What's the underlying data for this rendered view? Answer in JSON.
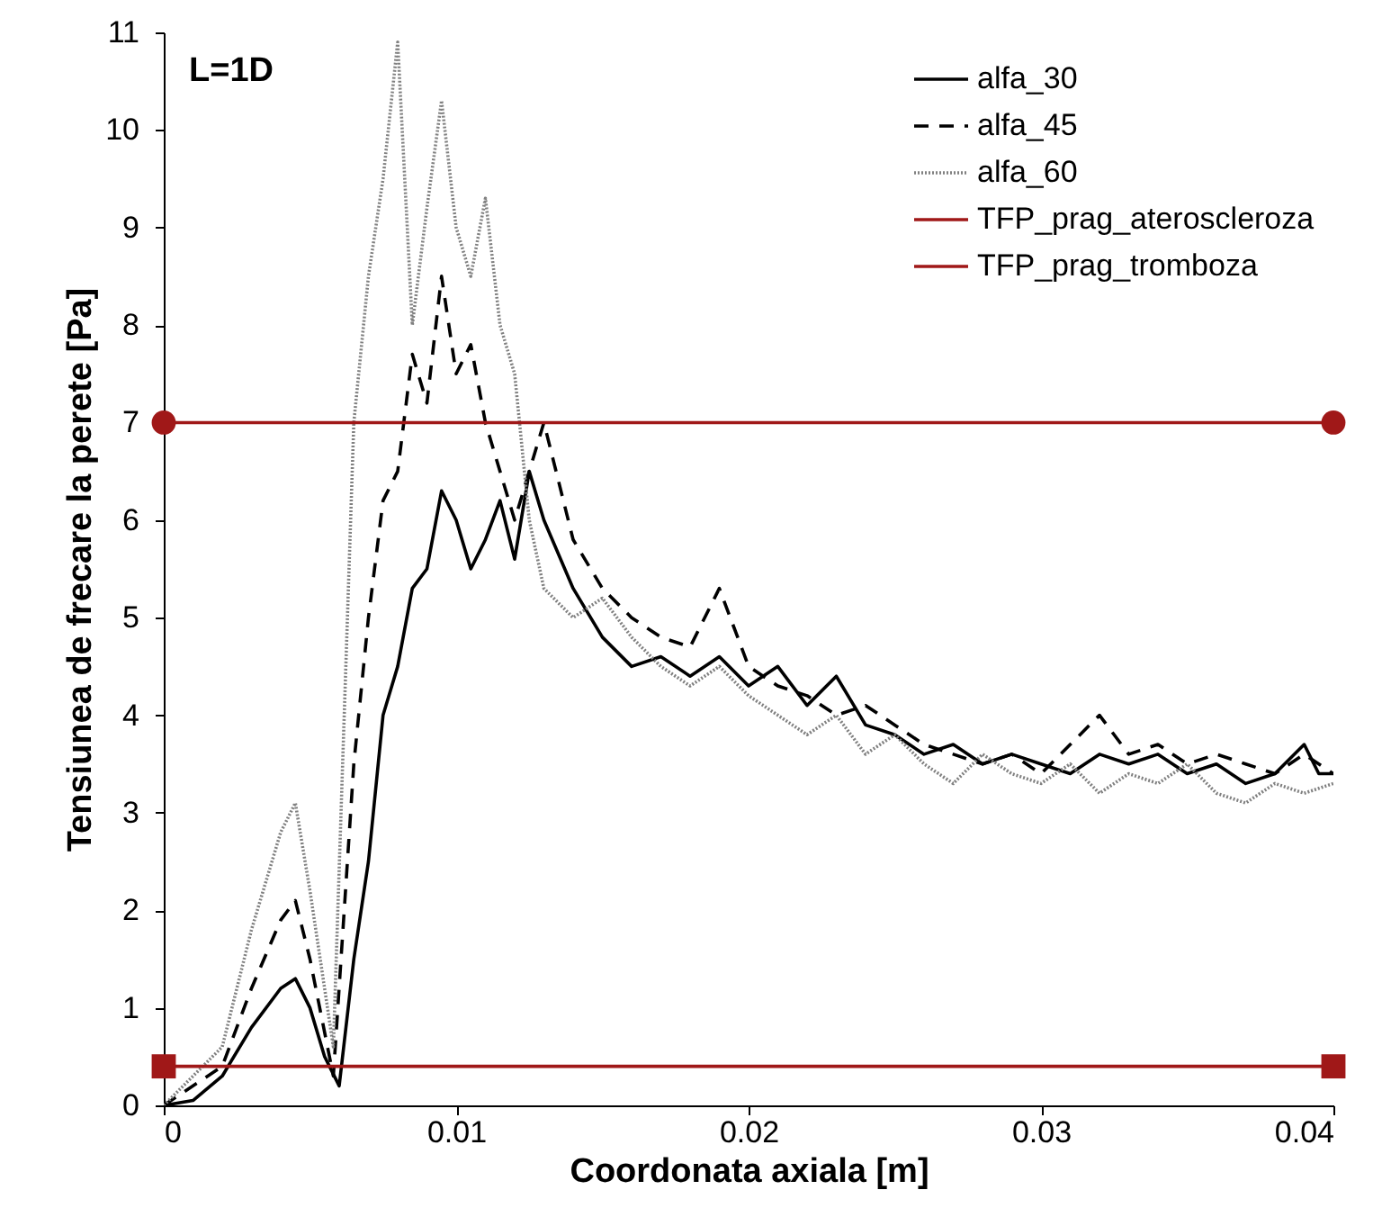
{
  "chart_data": {
    "type": "line",
    "xlabel": "Coordonata axiala [m]",
    "ylabel": "Tensiunea de frecare la perete [Pa]",
    "annotations": [
      "L=1D"
    ],
    "xlim": [
      0,
      0.04
    ],
    "xticks": [
      0,
      0.01,
      0.02,
      0.03,
      0.04
    ],
    "ylim": [
      0,
      11
    ],
    "yticks": [
      0,
      1,
      2,
      3,
      4,
      5,
      6,
      7,
      8,
      9,
      10,
      11
    ],
    "grid": false,
    "legend": "top right",
    "series": [
      {
        "name": "alfa_30",
        "color": "#000000",
        "line_style": "solid",
        "x": [
          0,
          0.001,
          0.002,
          0.003,
          0.004,
          0.0045,
          0.005,
          0.0055,
          0.006,
          0.0065,
          0.007,
          0.0075,
          0.008,
          0.0085,
          0.009,
          0.0095,
          0.01,
          0.0105,
          0.011,
          0.0115,
          0.012,
          0.0125,
          0.013,
          0.014,
          0.015,
          0.016,
          0.017,
          0.018,
          0.019,
          0.02,
          0.021,
          0.022,
          0.023,
          0.024,
          0.025,
          0.026,
          0.027,
          0.028,
          0.029,
          0.03,
          0.031,
          0.032,
          0.033,
          0.034,
          0.035,
          0.036,
          0.037,
          0.038,
          0.039,
          0.0395,
          0.04
        ],
        "values": [
          0,
          0.05,
          0.3,
          0.8,
          1.2,
          1.3,
          1.0,
          0.5,
          0.2,
          1.5,
          2.5,
          4.0,
          4.5,
          5.3,
          5.5,
          6.3,
          6.0,
          5.5,
          5.8,
          6.2,
          5.6,
          6.5,
          6.0,
          5.3,
          4.8,
          4.5,
          4.6,
          4.4,
          4.6,
          4.3,
          4.5,
          4.1,
          4.4,
          3.9,
          3.8,
          3.6,
          3.7,
          3.5,
          3.6,
          3.5,
          3.4,
          3.6,
          3.5,
          3.6,
          3.4,
          3.5,
          3.3,
          3.4,
          3.7,
          3.4,
          3.4
        ]
      },
      {
        "name": "alfa_45",
        "color": "#000000",
        "line_style": "dashed",
        "x": [
          0,
          0.002,
          0.003,
          0.004,
          0.0045,
          0.005,
          0.0058,
          0.0065,
          0.007,
          0.0075,
          0.008,
          0.0085,
          0.009,
          0.0095,
          0.01,
          0.0105,
          0.011,
          0.0115,
          0.012,
          0.013,
          0.014,
          0.015,
          0.016,
          0.017,
          0.018,
          0.019,
          0.02,
          0.021,
          0.022,
          0.023,
          0.024,
          0.025,
          0.026,
          0.027,
          0.028,
          0.029,
          0.03,
          0.031,
          0.032,
          0.033,
          0.034,
          0.035,
          0.036,
          0.037,
          0.038,
          0.039,
          0.04
        ],
        "values": [
          0,
          0.4,
          1.2,
          1.9,
          2.1,
          1.5,
          0.3,
          3.5,
          5.0,
          6.2,
          6.5,
          7.7,
          7.2,
          8.5,
          7.5,
          7.8,
          7.0,
          6.5,
          6.0,
          7.0,
          5.8,
          5.3,
          5.0,
          4.8,
          4.7,
          5.3,
          4.5,
          4.3,
          4.2,
          4.0,
          4.1,
          3.9,
          3.7,
          3.6,
          3.5,
          3.6,
          3.4,
          3.7,
          4.0,
          3.6,
          3.7,
          3.5,
          3.6,
          3.5,
          3.4,
          3.6,
          3.4
        ]
      },
      {
        "name": "alfa_60",
        "color": "#808080",
        "line_style": "dotted",
        "x": [
          0,
          0.002,
          0.003,
          0.004,
          0.0045,
          0.005,
          0.0058,
          0.0065,
          0.007,
          0.0075,
          0.008,
          0.0085,
          0.009,
          0.0095,
          0.01,
          0.0105,
          0.011,
          0.0115,
          0.012,
          0.0125,
          0.013,
          0.014,
          0.015,
          0.016,
          0.017,
          0.018,
          0.019,
          0.02,
          0.021,
          0.022,
          0.023,
          0.024,
          0.025,
          0.026,
          0.027,
          0.028,
          0.029,
          0.03,
          0.031,
          0.032,
          0.033,
          0.034,
          0.035,
          0.036,
          0.037,
          0.038,
          0.039,
          0.04
        ],
        "values": [
          0,
          0.6,
          1.8,
          2.8,
          3.1,
          2.2,
          0.6,
          7.0,
          8.5,
          9.5,
          10.9,
          8.0,
          9.2,
          10.3,
          9.0,
          8.5,
          9.3,
          8.0,
          7.5,
          6.0,
          5.3,
          5.0,
          5.2,
          4.8,
          4.5,
          4.3,
          4.5,
          4.2,
          4.0,
          3.8,
          4.0,
          3.6,
          3.8,
          3.5,
          3.3,
          3.6,
          3.4,
          3.3,
          3.5,
          3.2,
          3.4,
          3.3,
          3.5,
          3.2,
          3.1,
          3.3,
          3.2,
          3.3
        ]
      },
      {
        "name": "TFP_prag_ateroscleroza",
        "color": "#a01818",
        "line_style": "solid",
        "marker": "square",
        "x": [
          0,
          0.04
        ],
        "values": [
          0.4,
          0.4
        ]
      },
      {
        "name": "TFP_prag_tromboza",
        "color": "#a01818",
        "line_style": "solid",
        "marker": "circle",
        "x": [
          0,
          0.04
        ],
        "values": [
          7,
          7
        ]
      }
    ]
  }
}
